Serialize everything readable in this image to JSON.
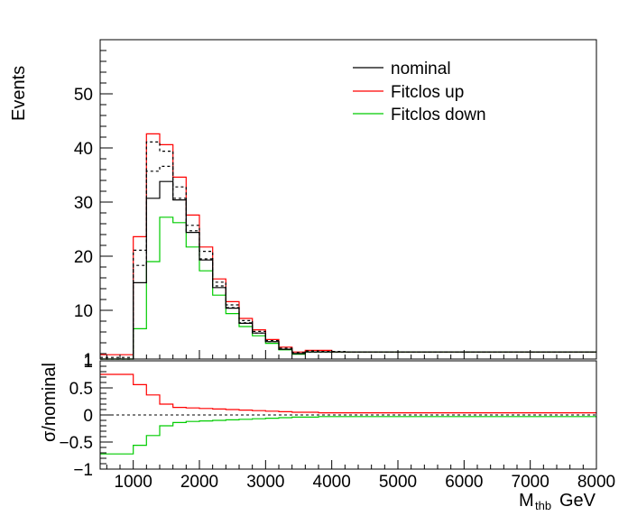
{
  "chart_data": [
    {
      "type": "histogram",
      "xlim": [
        500,
        8000
      ],
      "ylim": [
        1,
        60
      ],
      "ylabel": "Events",
      "yticks": [
        10,
        20,
        30,
        40,
        50
      ],
      "ytick_labels": [
        "10",
        "20",
        "30",
        "40",
        "50"
      ],
      "ybottom_label": "1",
      "legend": {
        "position": "top-right",
        "entries": [
          {
            "label": "nominal",
            "color": "#000000"
          },
          {
            "label": "Fitclos up",
            "color": "#ff0000"
          },
          {
            "label": "Fitclos down",
            "color": "#00cc00"
          }
        ]
      },
      "bin_edges": [
        500,
        1000,
        1200,
        1400,
        1600,
        1800,
        2000,
        2200,
        2400,
        2600,
        2800,
        3000,
        3200,
        3400,
        3600,
        3800,
        4000,
        4200,
        8000
      ],
      "series": [
        {
          "name": "nominal",
          "color": "#000000",
          "style": "solid",
          "values": [
            0.8,
            15.1,
            30.7,
            33.8,
            30.4,
            24.4,
            19.3,
            14.2,
            10.4,
            7.6,
            5.8,
            4.2,
            2.8,
            2.0,
            2.3,
            2.3,
            2.3,
            2.3
          ]
        },
        {
          "name": "nominal stat up",
          "color": "#000000",
          "style": "dashed",
          "values": [
            1.3,
            21.1,
            41.1,
            39.4,
            32.8,
            25.7,
            20.9,
            15.2,
            11.0,
            8.1,
            6.1,
            4.4,
            3.0,
            2.2,
            2.5,
            2.4,
            2.4,
            2.3
          ]
        },
        {
          "name": "nominal stat down",
          "color": "#000000",
          "style": "dashed",
          "values": [
            0.6,
            18.3,
            35.7,
            36.6,
            30.7,
            24.7,
            19.5,
            14.5,
            10.5,
            7.7,
            5.8,
            4.2,
            2.8,
            2.0,
            2.3,
            2.3,
            2.3,
            2.3
          ]
        },
        {
          "name": "Fitclos up",
          "color": "#ff0000",
          "style": "solid",
          "values": [
            1.8,
            23.6,
            42.6,
            40.6,
            34.6,
            27.6,
            21.7,
            15.8,
            11.6,
            8.5,
            6.4,
            4.6,
            3.2,
            2.3,
            2.6,
            2.6,
            2.3,
            2.3
          ]
        },
        {
          "name": "Fitclos down",
          "color": "#00cc00",
          "style": "solid",
          "values": [
            0.6,
            6.6,
            19.0,
            27.2,
            26.2,
            21.7,
            17.3,
            12.8,
            9.4,
            7.0,
            5.3,
            3.9,
            2.7,
            1.9,
            2.3,
            2.3,
            2.3,
            2.3
          ]
        }
      ]
    },
    {
      "type": "histogram",
      "xlim": [
        500,
        8000
      ],
      "ylim": [
        -1,
        1
      ],
      "xlabel_main": "M",
      "xlabel_sub": "thb",
      "xlabel_unit": "GeV",
      "ylabel": "σ/nominal",
      "xticks": [
        1000,
        2000,
        3000,
        4000,
        5000,
        6000,
        7000,
        8000
      ],
      "xtick_labels": [
        "1000",
        "2000",
        "3000",
        "4000",
        "5000",
        "6000",
        "7000",
        "8000"
      ],
      "yticks": [
        -1,
        -0.5,
        0,
        0.5,
        1
      ],
      "ytick_labels": [
        "−1",
        "−0.5",
        "0",
        "0.5",
        "1"
      ],
      "bin_edges": [
        500,
        1000,
        1200,
        1400,
        1600,
        1800,
        2000,
        2200,
        2400,
        2600,
        2800,
        3000,
        3200,
        3400,
        3600,
        3800,
        4000,
        4200,
        8000
      ],
      "series": [
        {
          "name": "Fitclos up",
          "color": "#ff0000",
          "style": "solid",
          "values": [
            0.75,
            0.56,
            0.37,
            0.2,
            0.14,
            0.13,
            0.12,
            0.11,
            0.1,
            0.09,
            0.08,
            0.07,
            0.06,
            0.05,
            0.05,
            0.04,
            0.04,
            0.04
          ]
        },
        {
          "name": "Fitclos down",
          "color": "#00cc00",
          "style": "solid",
          "values": [
            -0.72,
            -0.56,
            -0.38,
            -0.2,
            -0.14,
            -0.12,
            -0.11,
            -0.1,
            -0.09,
            -0.08,
            -0.07,
            -0.06,
            -0.05,
            -0.04,
            -0.04,
            -0.03,
            -0.03,
            -0.03
          ]
        }
      ],
      "reference_line": {
        "y": 0,
        "style": "dashed",
        "color": "#000000"
      }
    }
  ]
}
